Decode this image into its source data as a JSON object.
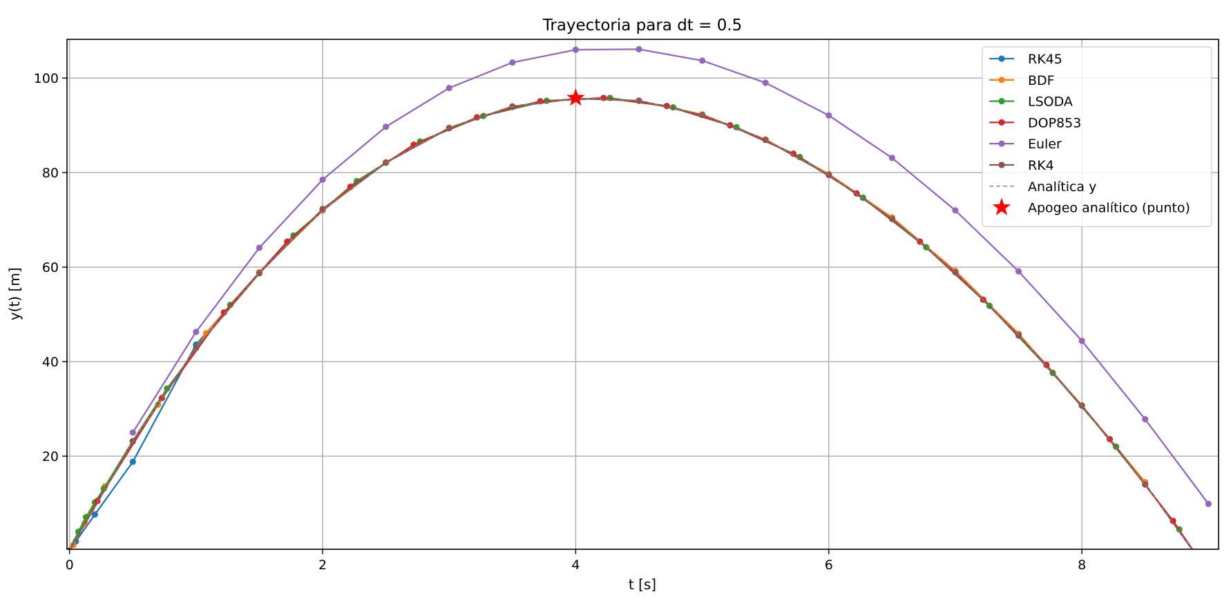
{
  "chart_data": {
    "type": "line",
    "title": "Trayectoria para dt = 0.5",
    "xlabel": "t [s]",
    "ylabel": "y(t) [m]",
    "xlim": [
      -0.02,
      9.08
    ],
    "ylim": [
      0.3,
      108.2
    ],
    "xticks": [
      0,
      2,
      4,
      6,
      8
    ],
    "yticks": [
      20,
      40,
      60,
      80,
      100
    ],
    "grid": true,
    "legend_position": "top-right",
    "series": [
      {
        "name": "RK45",
        "color": "#1f77b4",
        "marker": "circle",
        "line": "solid",
        "x": [
          0.0,
          0.05,
          0.2,
          0.5,
          1.0,
          1.5,
          2.0,
          2.5,
          3.0,
          3.5,
          4.0,
          4.5,
          5.0,
          5.5,
          6.0,
          6.5,
          7.0,
          7.5,
          8.0,
          8.5,
          8.9
        ],
        "y": [
          0.0,
          1.96,
          7.65,
          18.8,
          43.6,
          58.9,
          72.0,
          82.1,
          89.4,
          93.9,
          95.7,
          95.2,
          92.2,
          87.0,
          79.6,
          70.4,
          59.0,
          45.5,
          30.7,
          14.1,
          -0.8
        ]
      },
      {
        "name": "BDF",
        "color": "#ff7f0e",
        "marker": "circle",
        "line": "solid",
        "x": [
          0.0,
          0.03,
          0.12,
          0.28,
          0.7,
          1.08,
          1.5,
          2.0,
          2.5,
          3.0,
          3.5,
          4.0,
          4.5,
          5.0,
          5.5,
          6.0,
          6.5,
          7.0,
          7.5,
          8.0,
          8.5
        ],
        "y": [
          0.0,
          1.2,
          5.8,
          13.6,
          30.9,
          46.0,
          58.9,
          72.0,
          82.2,
          89.5,
          94.0,
          95.7,
          95.2,
          92.3,
          87.0,
          79.7,
          70.5,
          59.2,
          45.9,
          30.7,
          14.5
        ]
      },
      {
        "name": "LSODA",
        "color": "#2ca02c",
        "marker": "circle",
        "line": "solid",
        "x": [
          0.0,
          0.07,
          0.13,
          0.2,
          0.27,
          0.5,
          0.77,
          1.27,
          1.77,
          2.27,
          2.77,
          3.27,
          3.77,
          4.27,
          4.77,
          5.27,
          5.77,
          6.27,
          6.77,
          7.27,
          7.77,
          8.27,
          8.77
        ],
        "y": [
          0.0,
          4.0,
          7.1,
          10.2,
          13.1,
          23.2,
          34.3,
          52.0,
          66.7,
          78.2,
          86.6,
          92.0,
          95.2,
          95.8,
          93.8,
          89.6,
          83.3,
          74.7,
          64.2,
          51.8,
          37.6,
          22.0,
          4.5
        ]
      },
      {
        "name": "DOP853",
        "color": "#d62728",
        "marker": "circle",
        "line": "solid",
        "x": [
          0.0,
          0.22,
          0.73,
          1.22,
          1.72,
          2.22,
          2.72,
          3.22,
          3.72,
          4.22,
          4.72,
          5.22,
          5.72,
          6.22,
          6.72,
          7.22,
          7.72,
          8.22,
          8.72,
          8.9
        ],
        "y": [
          0.0,
          10.5,
          32.3,
          50.4,
          65.4,
          77.0,
          85.9,
          91.7,
          95.1,
          95.8,
          94.1,
          90.0,
          84.0,
          75.6,
          65.4,
          53.1,
          39.3,
          23.6,
          6.3,
          -0.8
        ]
      },
      {
        "name": "Euler",
        "color": "#9467bd",
        "marker": "circle",
        "line": "solid",
        "x": [
          0.5,
          1.0,
          1.5,
          2.0,
          2.5,
          3.0,
          3.5,
          4.0,
          4.5,
          5.0,
          5.5,
          6.0,
          6.5,
          7.0,
          7.5,
          8.0,
          8.5,
          9.0
        ],
        "y": [
          25.0,
          46.3,
          64.1,
          78.5,
          89.7,
          97.9,
          103.3,
          106.0,
          106.1,
          103.7,
          99.0,
          92.1,
          83.1,
          72.0,
          59.1,
          44.4,
          27.8,
          9.9
        ]
      },
      {
        "name": "RK4",
        "color": "#8c564b",
        "marker": "circle",
        "line": "solid",
        "x": [
          0.0,
          0.5,
          1.0,
          1.5,
          2.0,
          2.5,
          3.0,
          3.5,
          4.0,
          4.5,
          5.0,
          5.5,
          6.0,
          6.5,
          7.0,
          7.5,
          8.0,
          8.5
        ],
        "y": [
          0.0,
          23.1,
          42.9,
          58.7,
          72.3,
          82.1,
          89.4,
          94.0,
          95.7,
          95.2,
          92.2,
          86.9,
          79.5,
          70.2,
          58.9,
          45.6,
          30.7,
          14.0
        ]
      },
      {
        "name": "Analítica y",
        "color": "#808080",
        "marker": "none",
        "line": "dashed",
        "x": [
          0.0,
          0.5,
          1.0,
          1.5,
          2.0,
          2.5,
          3.0,
          3.5,
          4.0,
          4.5,
          5.0,
          5.5,
          6.0,
          6.5,
          7.0,
          7.5,
          8.0,
          8.5,
          8.9
        ],
        "y": [
          0.0,
          23.1,
          42.9,
          58.9,
          72.0,
          82.2,
          89.5,
          94.0,
          95.7,
          95.2,
          92.3,
          87.0,
          79.6,
          70.4,
          59.0,
          45.6,
          30.7,
          14.1,
          -0.8
        ]
      }
    ],
    "apogee_point": {
      "name": "Apogeo analítico (punto)",
      "x": 4.0,
      "y": 95.8,
      "color": "#ff0000",
      "marker": "star"
    }
  }
}
